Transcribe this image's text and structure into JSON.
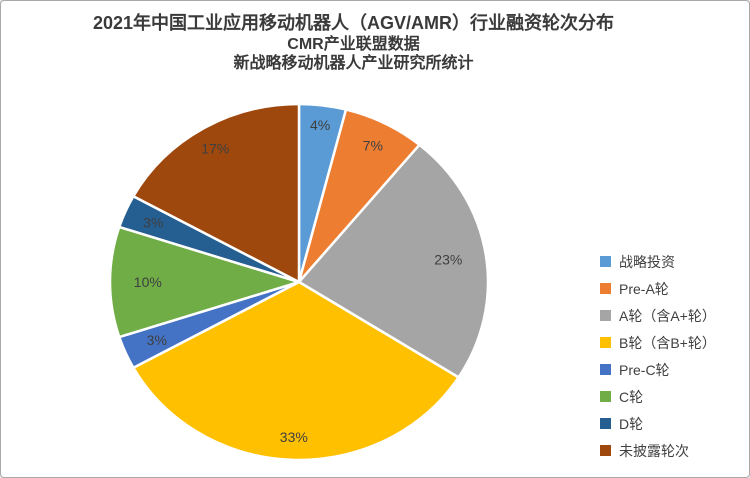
{
  "title": {
    "line1": "2021年中国工业应用移动机器人（AGV/AMR）行业融资轮次分布",
    "line2": "CMR产业联盟数据",
    "line3": "新战略移动机器人产业研究所统计"
  },
  "chart_data": {
    "type": "pie",
    "title": "2021年中国工业应用移动机器人（AGV/AMR）行业融资轮次分布",
    "subtitles": [
      "CMR产业联盟数据",
      "新战略移动机器人产业研究所统计"
    ],
    "categories": [
      "战略投资",
      "Pre-A轮",
      "A轮（含A+轮）",
      "B轮（含B+轮）",
      "Pre-C轮",
      "C轮",
      "D轮",
      "未披露轮次"
    ],
    "values": [
      4,
      7,
      23,
      33,
      3,
      10,
      3,
      17
    ],
    "labels": [
      "4%",
      "7%",
      "23%",
      "33%",
      "3%",
      "10%",
      "3%",
      "17%"
    ],
    "colors": [
      "#5B9BD5",
      "#ED7D31",
      "#A5A5A5",
      "#FFC000",
      "#4472C4",
      "#70AD47",
      "#255E91",
      "#9E480E"
    ],
    "unit": "%",
    "start_angle_deg": 0,
    "direction": "clockwise",
    "legend_position": "right",
    "label_color": "#3F3F3F",
    "background": "#FFFFFF"
  }
}
